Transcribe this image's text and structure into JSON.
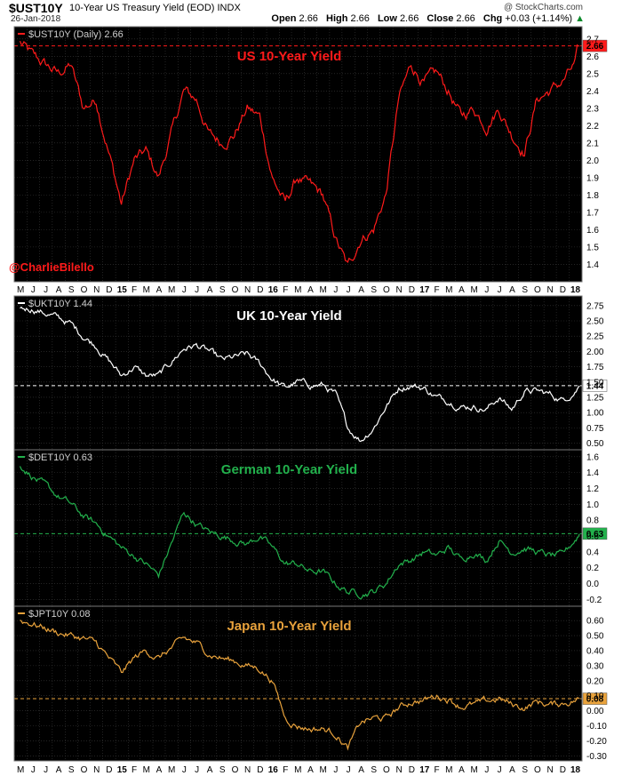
{
  "header": {
    "symbol": "$UST10Y",
    "description": "10-Year US Treasury Yield (EOD)",
    "exchange": "INDX",
    "date": "26-Jan-2018",
    "credit": "@ StockCharts.com",
    "ohlc": [
      {
        "label": "Open",
        "value": "2.66"
      },
      {
        "label": "High",
        "value": "2.66"
      },
      {
        "label": "Low",
        "value": "2.66"
      },
      {
        "label": "Close",
        "value": "2.66"
      }
    ],
    "change_label": "Chg",
    "change_value": "+0.03 (+1.14%)",
    "change_arrow": "▲",
    "change_color": "#0a8a2a"
  },
  "handle": "@CharlieBilello",
  "chart_data": [
    {
      "type": "line",
      "legend": "$UST10Y (Daily) 2.66",
      "title": "US 10-Year Yield",
      "color": "#ff1a1a",
      "title_color": "#ff1a1a",
      "ylim": [
        1.32,
        2.74
      ],
      "yticks": [
        "1.4",
        "1.5",
        "1.6",
        "1.7",
        "1.8",
        "1.9",
        "2.0",
        "2.1",
        "2.2",
        "2.3",
        "2.4",
        "2.5",
        "2.6",
        "2.7"
      ],
      "last_value": "2.66",
      "reference_line": 2.66,
      "x": [
        "2014-05",
        "2014-06",
        "2014-08",
        "2014-09",
        "2014-10",
        "2014-11",
        "2015-01",
        "2015-02",
        "2015-03",
        "2015-04",
        "2015-06",
        "2015-07",
        "2015-08",
        "2015-09",
        "2015-10",
        "2015-11",
        "2015-12",
        "2016-01",
        "2016-02",
        "2016-03",
        "2016-04",
        "2016-05",
        "2016-06",
        "2016-07",
        "2016-08",
        "2016-09",
        "2016-10",
        "2016-11",
        "2016-12",
        "2017-01",
        "2017-02",
        "2017-03",
        "2017-04",
        "2017-05",
        "2017-06",
        "2017-07",
        "2017-08",
        "2017-09",
        "2017-10",
        "2017-11",
        "2017-12",
        "2018-01",
        "2018-01-26"
      ],
      "values": [
        2.68,
        2.6,
        2.5,
        2.55,
        2.3,
        2.35,
        1.75,
        2.0,
        2.05,
        1.9,
        2.4,
        2.35,
        2.15,
        2.1,
        2.15,
        2.3,
        2.25,
        1.9,
        1.75,
        1.9,
        1.85,
        1.8,
        1.55,
        1.38,
        1.55,
        1.6,
        1.8,
        2.35,
        2.55,
        2.45,
        2.5,
        2.4,
        2.25,
        2.3,
        2.2,
        2.3,
        2.15,
        2.05,
        2.35,
        2.4,
        2.45,
        2.55,
        2.66
      ]
    },
    {
      "type": "line",
      "legend": "$UKT10Y 1.44",
      "title": "UK 10-Year Yield",
      "color": "#ffffff",
      "title_color": "#ffffff",
      "ylim": [
        0.45,
        2.82
      ],
      "yticks": [
        "0.50",
        "0.75",
        "1.00",
        "1.25",
        "1.50",
        "1.75",
        "2.00",
        "2.25",
        "2.50",
        "2.75"
      ],
      "last_value": "1.44",
      "reference_line": 1.44,
      "x": [
        "2014-05",
        "2014-06",
        "2014-08",
        "2014-09",
        "2014-10",
        "2014-11",
        "2015-01",
        "2015-02",
        "2015-03",
        "2015-04",
        "2015-06",
        "2015-07",
        "2015-08",
        "2015-09",
        "2015-10",
        "2015-11",
        "2015-12",
        "2016-01",
        "2016-02",
        "2016-03",
        "2016-04",
        "2016-05",
        "2016-06",
        "2016-07",
        "2016-08",
        "2016-09",
        "2016-10",
        "2016-11",
        "2016-12",
        "2017-01",
        "2017-02",
        "2017-03",
        "2017-04",
        "2017-05",
        "2017-06",
        "2017-07",
        "2017-08",
        "2017-09",
        "2017-10",
        "2017-11",
        "2017-12",
        "2018-01",
        "2018-01-26"
      ],
      "values": [
        2.7,
        2.7,
        2.55,
        2.45,
        2.25,
        2.1,
        1.6,
        1.75,
        1.6,
        1.6,
        2.05,
        2.1,
        2.0,
        1.85,
        1.9,
        1.95,
        1.8,
        1.55,
        1.4,
        1.5,
        1.45,
        1.45,
        1.3,
        0.75,
        0.55,
        0.75,
        1.1,
        1.4,
        1.45,
        1.4,
        1.25,
        1.2,
        1.1,
        1.1,
        1.05,
        1.25,
        1.05,
        1.35,
        1.35,
        1.3,
        1.2,
        1.35,
        1.44
      ]
    },
    {
      "type": "line",
      "legend": "$DET10Y 0.63",
      "title": "German 10-Year Yield",
      "color": "#22b14c",
      "title_color": "#22b14c",
      "ylim": [
        -0.24,
        1.62
      ],
      "yticks": [
        "-0.2",
        "0.0",
        "0.2",
        "0.4",
        "0.6",
        "0.8",
        "1.0",
        "1.2",
        "1.4",
        "1.6"
      ],
      "last_value": "0.63",
      "reference_line": 0.63,
      "x": [
        "2014-05",
        "2014-06",
        "2014-08",
        "2014-09",
        "2014-10",
        "2014-11",
        "2015-01",
        "2015-02",
        "2015-03",
        "2015-04",
        "2015-06",
        "2015-07",
        "2015-08",
        "2015-09",
        "2015-10",
        "2015-11",
        "2015-12",
        "2016-01",
        "2016-02",
        "2016-03",
        "2016-04",
        "2016-05",
        "2016-06",
        "2016-07",
        "2016-08",
        "2016-09",
        "2016-10",
        "2016-11",
        "2016-12",
        "2017-01",
        "2017-02",
        "2017-03",
        "2017-04",
        "2017-05",
        "2017-06",
        "2017-07",
        "2017-08",
        "2017-09",
        "2017-10",
        "2017-11",
        "2017-12",
        "2018-01",
        "2018-01-26"
      ],
      "values": [
        1.5,
        1.35,
        1.1,
        1.0,
        0.85,
        0.75,
        0.45,
        0.35,
        0.25,
        0.1,
        0.9,
        0.75,
        0.65,
        0.6,
        0.55,
        0.5,
        0.6,
        0.45,
        0.25,
        0.25,
        0.15,
        0.15,
        0.0,
        -0.1,
        -0.12,
        -0.1,
        0.0,
        0.25,
        0.3,
        0.4,
        0.35,
        0.45,
        0.3,
        0.4,
        0.3,
        0.55,
        0.4,
        0.45,
        0.4,
        0.35,
        0.35,
        0.55,
        0.63
      ]
    },
    {
      "type": "line",
      "legend": "$JPT10Y 0.08",
      "title": "Japan 10-Year Yield",
      "color": "#e8a23c",
      "title_color": "#e8a23c",
      "ylim": [
        -0.31,
        0.66
      ],
      "yticks": [
        "-0.30",
        "-0.20",
        "-0.10",
        "0.00",
        "0.10",
        "0.20",
        "0.30",
        "0.40",
        "0.50",
        "0.60"
      ],
      "last_value": "0.08",
      "reference_line": 0.08,
      "x": [
        "2014-05",
        "2014-06",
        "2014-08",
        "2014-09",
        "2014-10",
        "2014-11",
        "2015-01",
        "2015-02",
        "2015-03",
        "2015-04",
        "2015-06",
        "2015-07",
        "2015-08",
        "2015-09",
        "2015-10",
        "2015-11",
        "2015-12",
        "2016-01",
        "2016-02",
        "2016-03",
        "2016-04",
        "2016-05",
        "2016-06",
        "2016-07",
        "2016-08",
        "2016-09",
        "2016-10",
        "2016-11",
        "2016-12",
        "2017-01",
        "2017-02",
        "2017-03",
        "2017-04",
        "2017-05",
        "2017-06",
        "2017-07",
        "2017-08",
        "2017-09",
        "2017-10",
        "2017-11",
        "2017-12",
        "2018-01",
        "2018-01-26"
      ],
      "values": [
        0.6,
        0.58,
        0.52,
        0.5,
        0.48,
        0.45,
        0.25,
        0.35,
        0.4,
        0.35,
        0.48,
        0.45,
        0.38,
        0.35,
        0.33,
        0.3,
        0.28,
        0.2,
        -0.05,
        -0.1,
        -0.12,
        -0.12,
        -0.15,
        -0.25,
        -0.08,
        -0.05,
        -0.05,
        0.02,
        0.06,
        0.07,
        0.1,
        0.08,
        0.03,
        0.04,
        0.06,
        0.08,
        0.04,
        0.02,
        0.06,
        0.04,
        0.05,
        0.07,
        0.08
      ]
    }
  ],
  "x_axis": {
    "labels": [
      {
        "text": "M",
        "date": "2014-05"
      },
      {
        "text": "J",
        "date": "2014-06"
      },
      {
        "text": "J",
        "date": "2014-07"
      },
      {
        "text": "A",
        "date": "2014-08"
      },
      {
        "text": "S",
        "date": "2014-09"
      },
      {
        "text": "O",
        "date": "2014-10"
      },
      {
        "text": "N",
        "date": "2014-11"
      },
      {
        "text": "D",
        "date": "2014-12"
      },
      {
        "text": "15",
        "date": "2015-01",
        "bold": true
      },
      {
        "text": "F",
        "date": "2015-02"
      },
      {
        "text": "M",
        "date": "2015-03"
      },
      {
        "text": "A",
        "date": "2015-04"
      },
      {
        "text": "M",
        "date": "2015-05"
      },
      {
        "text": "J",
        "date": "2015-06"
      },
      {
        "text": "J",
        "date": "2015-07"
      },
      {
        "text": "A",
        "date": "2015-08"
      },
      {
        "text": "S",
        "date": "2015-09"
      },
      {
        "text": "O",
        "date": "2015-10"
      },
      {
        "text": "N",
        "date": "2015-11"
      },
      {
        "text": "D",
        "date": "2015-12"
      },
      {
        "text": "16",
        "date": "2016-01",
        "bold": true
      },
      {
        "text": "F",
        "date": "2016-02"
      },
      {
        "text": "M",
        "date": "2016-03"
      },
      {
        "text": "A",
        "date": "2016-04"
      },
      {
        "text": "M",
        "date": "2016-05"
      },
      {
        "text": "J",
        "date": "2016-06"
      },
      {
        "text": "J",
        "date": "2016-07"
      },
      {
        "text": "A",
        "date": "2016-08"
      },
      {
        "text": "S",
        "date": "2016-09"
      },
      {
        "text": "O",
        "date": "2016-10"
      },
      {
        "text": "N",
        "date": "2016-11"
      },
      {
        "text": "D",
        "date": "2016-12"
      },
      {
        "text": "17",
        "date": "2017-01",
        "bold": true
      },
      {
        "text": "F",
        "date": "2017-02"
      },
      {
        "text": "M",
        "date": "2017-03"
      },
      {
        "text": "A",
        "date": "2017-04"
      },
      {
        "text": "M",
        "date": "2017-05"
      },
      {
        "text": "J",
        "date": "2017-06"
      },
      {
        "text": "J",
        "date": "2017-07"
      },
      {
        "text": "A",
        "date": "2017-08"
      },
      {
        "text": "S",
        "date": "2017-09"
      },
      {
        "text": "O",
        "date": "2017-10"
      },
      {
        "text": "N",
        "date": "2017-11"
      },
      {
        "text": "D",
        "date": "2017-12"
      },
      {
        "text": "18",
        "date": "2018-01",
        "bold": true
      }
    ]
  },
  "colors": {
    "panel_background": "#000000",
    "grid": "#3a3a3a",
    "axis_text": "#000000"
  }
}
